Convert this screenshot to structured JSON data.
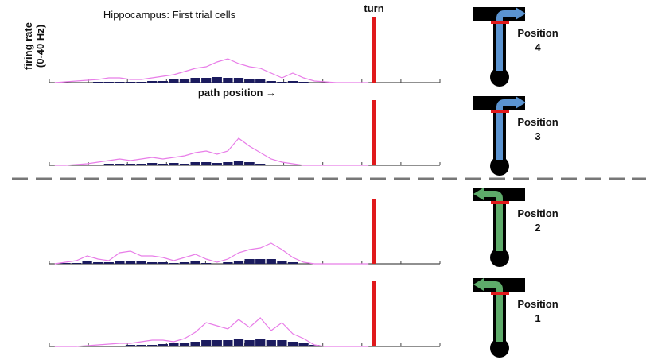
{
  "title": "Hippocampus: First trial cells",
  "y_label": [
    "firing rate",
    "(0-40 Hz)"
  ],
  "x_label": "path position →",
  "turn_label": "turn",
  "panels": [
    {
      "position_label": "Position",
      "position_number": "4",
      "curve": [
        0,
        0.5,
        1,
        1.5,
        2,
        3,
        3,
        2,
        2,
        3,
        4,
        5,
        7,
        9,
        10,
        13,
        15,
        12,
        10,
        9,
        6,
        3,
        6,
        3,
        1,
        0.5,
        0,
        0,
        0,
        0
      ],
      "bars": [
        0,
        0,
        0,
        0,
        0.5,
        0.5,
        0.5,
        0.5,
        0.5,
        1,
        1,
        2,
        2.5,
        3,
        3,
        3.5,
        3,
        3,
        2.5,
        2,
        1,
        0.5,
        1,
        0.5,
        0,
        0,
        0,
        0,
        0,
        0
      ]
    },
    {
      "position_label": "Position",
      "position_number": "3",
      "curve": [
        0,
        0,
        0.5,
        1,
        2,
        3,
        4,
        3,
        4,
        5,
        4,
        5,
        6,
        8,
        9,
        7,
        9,
        17,
        12,
        8,
        4,
        2,
        1,
        0,
        0,
        0,
        0,
        0,
        0,
        0
      ],
      "bars": [
        0,
        0,
        0,
        0.5,
        0.5,
        1,
        1,
        1,
        1,
        1.5,
        1,
        1.5,
        1,
        2,
        2,
        1.5,
        2,
        3,
        2,
        1,
        0.5,
        0,
        0,
        0,
        0,
        0,
        0,
        0,
        0,
        0
      ]
    },
    {
      "position_label": "Position",
      "position_number": "2",
      "curve": [
        0,
        1,
        2,
        5,
        3,
        2,
        7,
        8,
        5,
        5,
        4,
        2,
        4,
        6,
        3,
        1,
        3,
        7,
        9,
        10,
        13,
        9,
        4,
        1,
        0,
        0,
        0,
        0,
        0,
        0
      ],
      "bars": [
        0,
        0.5,
        0.5,
        1.5,
        1,
        1,
        2,
        2,
        1.5,
        1,
        1,
        0.5,
        1,
        2,
        0.5,
        0,
        1,
        2,
        3,
        3,
        3,
        2,
        1,
        0,
        0,
        0,
        0,
        0,
        0,
        0
      ]
    },
    {
      "position_label": "Position",
      "position_number": "1",
      "curve": [
        0,
        0,
        0,
        0.5,
        1,
        1.5,
        2,
        2,
        3,
        4,
        4,
        3,
        5,
        9,
        15,
        13,
        11,
        17,
        12,
        18,
        10,
        15,
        8,
        5,
        1,
        0,
        0,
        0,
        0,
        0
      ],
      "bars": [
        0,
        0.5,
        0.5,
        0.5,
        0.5,
        0.5,
        0.5,
        1,
        1,
        1,
        1.5,
        2,
        2,
        3,
        4,
        4,
        4,
        5,
        4,
        5,
        4,
        4,
        3,
        2,
        1,
        0,
        0,
        0,
        0,
        0
      ]
    }
  ]
}
